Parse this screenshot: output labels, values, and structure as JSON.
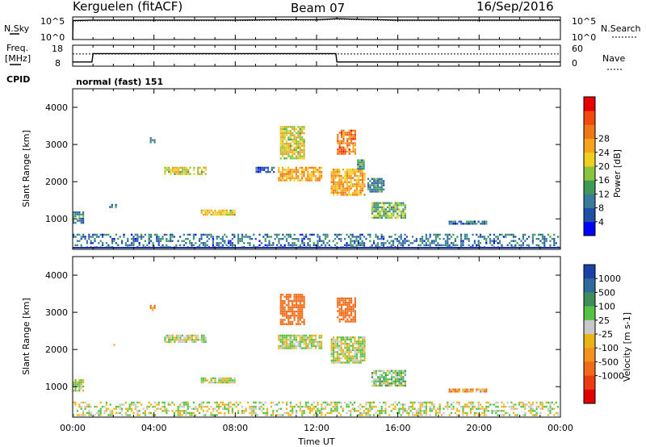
{
  "header": {
    "station": "Kerguelen (fitACF)",
    "beam": "Beam 07",
    "date": "16/Sep/2016"
  },
  "noise_panel": {
    "left_label": "N.Sky",
    "left_ticks": [
      "10^5",
      "10^0"
    ],
    "right_label": "N.Search",
    "right_ticks": [
      "10^5",
      "10^0"
    ]
  },
  "freq_panel": {
    "left_label_line1": "Freq.",
    "left_label_line2": "[MHz]",
    "left_ticks": [
      "18",
      "8"
    ],
    "right_label": "Nave",
    "right_ticks": [
      "60",
      "0"
    ],
    "cpid_label": "CPID",
    "cpid_text": "normal (fast) 151"
  },
  "chart_data": [
    {
      "type": "line",
      "name": "noise",
      "x": [
        0,
        1,
        2,
        4,
        6,
        8,
        10,
        12,
        13,
        14,
        16,
        18,
        20,
        22,
        24
      ],
      "series": [
        {
          "name": "N.Sky",
          "values": [
            4.2,
            4.3,
            4.3,
            4.3,
            4.3,
            4.3,
            4.4,
            4.4,
            4.6,
            4.5,
            4.3,
            4.3,
            4.3,
            4.3,
            4.3
          ]
        }
      ]
    },
    {
      "type": "line",
      "name": "frequency",
      "x": [
        0,
        0.95,
        1.0,
        12.95,
        13.0,
        24
      ],
      "series": [
        {
          "name": "Freq.",
          "values": [
            10,
            10,
            14,
            14,
            10,
            10
          ]
        },
        {
          "name": "Nave",
          "values": [
            35,
            35,
            35,
            35,
            35,
            35
          ]
        }
      ],
      "ylim": [
        8,
        18
      ]
    },
    {
      "type": "heatmap",
      "name": "power",
      "xlabel": "",
      "ylabel": "Slant Range [km]",
      "xlim": [
        0,
        24
      ],
      "ylim": [
        180,
        4500
      ],
      "yticks": [
        "1000",
        "2000",
        "3000",
        "4000"
      ],
      "colorbar": {
        "label": "Power [dB]",
        "ticks": [
          "4",
          "8",
          "12",
          "16",
          "20",
          "24",
          "28"
        ],
        "colors": [
          "#0000ff",
          "#1f4fa6",
          "#3a7a9a",
          "#3f9a57",
          "#8ac43f",
          "#f0d01e",
          "#f5a31a",
          "#f07812",
          "#f24a0e",
          "#e80000"
        ]
      },
      "regions": [
        {
          "t": [
            0.0,
            0.6
          ],
          "r": [
            850,
            1200
          ],
          "v": 8
        },
        {
          "t": [
            0.0,
            24.0
          ],
          "r": [
            200,
            600
          ],
          "v": 6
        },
        {
          "t": [
            1.8,
            2.2
          ],
          "r": [
            1250,
            1400
          ],
          "v": 6
        },
        {
          "t": [
            2.0,
            2.2
          ],
          "r": [
            2050,
            2150
          ],
          "v": 5
        },
        {
          "t": [
            3.8,
            4.1
          ],
          "r": [
            3000,
            3200
          ],
          "v": 6
        },
        {
          "t": [
            4.5,
            6.6
          ],
          "r": [
            2150,
            2400
          ],
          "v": 16
        },
        {
          "t": [
            6.3,
            8.1
          ],
          "r": [
            1050,
            1250
          ],
          "v": 16
        },
        {
          "t": [
            9.0,
            10.0
          ],
          "r": [
            2200,
            2400
          ],
          "v": 4
        },
        {
          "t": [
            10.2,
            11.5
          ],
          "r": [
            2550,
            3500
          ],
          "v": 16
        },
        {
          "t": [
            10.1,
            12.3
          ],
          "r": [
            1950,
            2400
          ],
          "v": 20
        },
        {
          "t": [
            13.0,
            14.0
          ],
          "r": [
            2700,
            3400
          ],
          "v": 24
        },
        {
          "t": [
            12.7,
            14.5
          ],
          "r": [
            1600,
            2350
          ],
          "v": 20
        },
        {
          "t": [
            14.0,
            14.4
          ],
          "r": [
            2300,
            2600
          ],
          "v": 8
        },
        {
          "t": [
            14.5,
            15.4
          ],
          "r": [
            1700,
            2100
          ],
          "v": 8
        },
        {
          "t": [
            14.7,
            16.5
          ],
          "r": [
            950,
            1450
          ],
          "v": 12
        },
        {
          "t": [
            18.5,
            20.5
          ],
          "r": [
            800,
            950
          ],
          "v": 6
        }
      ]
    },
    {
      "type": "heatmap",
      "name": "velocity",
      "xlabel": "Time UT",
      "ylabel": "Slant Range [km]",
      "xlim": [
        0,
        24
      ],
      "ylim": [
        180,
        4500
      ],
      "xticks": [
        "00:00",
        "04:00",
        "08:00",
        "12:00",
        "16:00",
        "20:00",
        "00:00"
      ],
      "yticks": [
        "1000",
        "2000",
        "3000",
        "4000"
      ],
      "colorbar": {
        "label": "Velocity [m s-1]",
        "ticks": [
          "1000",
          "500",
          "100",
          "25",
          "-25",
          "-100",
          "-500",
          "-1000"
        ],
        "colors": [
          "#1c3fa8",
          "#2e6a9c",
          "#3f8c5c",
          "#54c244",
          "#c8c8c8",
          "#e8b418",
          "#f3921c",
          "#f06a18",
          "#ea3c10",
          "#e00000"
        ]
      },
      "regions": [
        {
          "t": [
            0.0,
            0.6
          ],
          "r": [
            850,
            1200
          ],
          "v": 0
        },
        {
          "t": [
            0.0,
            24.0
          ],
          "r": [
            200,
            600
          ],
          "v": 0
        },
        {
          "t": [
            2.0,
            2.2
          ],
          "r": [
            2050,
            2150
          ],
          "v": -100
        },
        {
          "t": [
            3.8,
            4.1
          ],
          "r": [
            3000,
            3200
          ],
          "v": -100
        },
        {
          "t": [
            4.5,
            6.6
          ],
          "r": [
            2150,
            2400
          ],
          "v": 0
        },
        {
          "t": [
            6.3,
            8.1
          ],
          "r": [
            1050,
            1250
          ],
          "v": 0
        },
        {
          "t": [
            10.2,
            11.5
          ],
          "r": [
            2600,
            3500
          ],
          "v": -300
        },
        {
          "t": [
            10.1,
            12.3
          ],
          "r": [
            1950,
            2400
          ],
          "v": 0
        },
        {
          "t": [
            13.0,
            14.0
          ],
          "r": [
            2700,
            3400
          ],
          "v": -300
        },
        {
          "t": [
            12.7,
            14.5
          ],
          "r": [
            1600,
            2350
          ],
          "v": 0
        },
        {
          "t": [
            14.7,
            16.5
          ],
          "r": [
            950,
            1450
          ],
          "v": 50
        },
        {
          "t": [
            18.5,
            20.5
          ],
          "r": [
            800,
            950
          ],
          "v": -100
        }
      ]
    }
  ]
}
